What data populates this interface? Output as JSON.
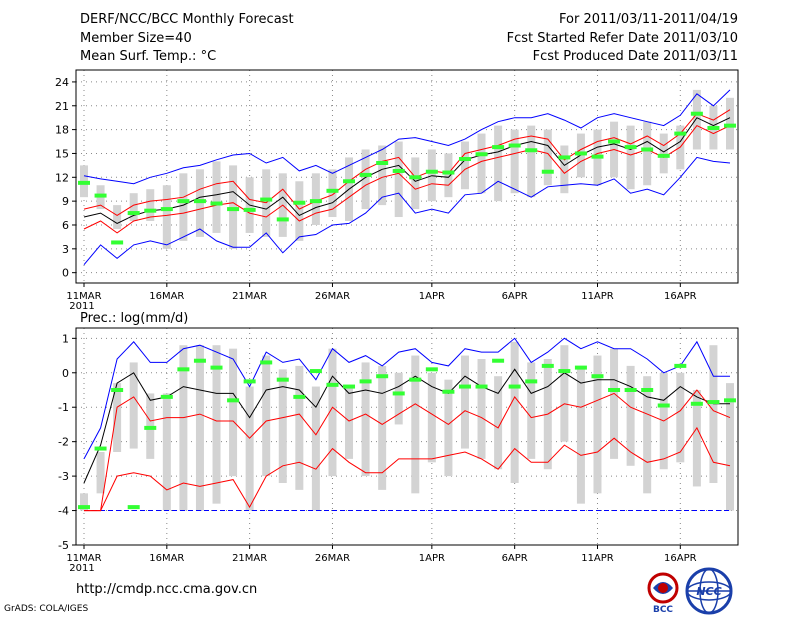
{
  "header": {
    "title": "DERF/NCC/BCC Monthly Forecast",
    "member_size": "Member Size=40",
    "variable": "Mean Surf. Temp.: °C",
    "period": "For 2011/03/11-2011/04/19",
    "fcst_started": "Fcst Started Refer Date 2011/03/10",
    "fcst_produced": "Fcst Produced Date 2011/03/11"
  },
  "footer": {
    "url": "http://cmdp.ncc.cma.gov.cn",
    "credit": "GrADS: COLA/IGES",
    "logo_bcc_label": "BCC",
    "logo_ncc_label": "NCC"
  },
  "colors": {
    "spread": "#0000ff",
    "band": "#ff0000",
    "mean": "#000000",
    "obs": "#33ff33",
    "box": "#d3d3d3",
    "grid": "#888888"
  },
  "chart_data": [
    {
      "type": "line",
      "title": "Mean Surf. Temp.: °C",
      "xlabel": "",
      "ylabel": "°C",
      "x_tick_labels": [
        "11MAR",
        "16MAR",
        "21MAR",
        "26MAR",
        "1APR",
        "6APR",
        "11APR",
        "16APR"
      ],
      "x_tick_days": [
        0,
        5,
        10,
        15,
        21,
        26,
        31,
        36
      ],
      "year_label": "2011",
      "y_ticks": [
        0,
        3,
        6,
        9,
        12,
        15,
        18,
        21,
        24
      ],
      "ylim": [
        -1.3,
        25.5
      ],
      "days": 40,
      "series": [
        {
          "name": "max",
          "color": "#0000ff",
          "values": [
            12.2,
            11.8,
            11.5,
            11.2,
            12.0,
            12.5,
            13.2,
            13.5,
            14.2,
            14.8,
            15.0,
            13.8,
            14.5,
            12.8,
            13.5,
            12.5,
            13.5,
            14.5,
            15.5,
            16.8,
            17.0,
            16.5,
            16.0,
            16.8,
            18.0,
            19.0,
            19.5,
            19.5,
            20.0,
            19.2,
            18.2,
            19.5,
            20.0,
            19.5,
            19.0,
            18.5,
            19.8,
            22.5,
            21.0,
            23.0
          ]
        },
        {
          "name": "upper",
          "color": "#ff0000",
          "values": [
            8.0,
            8.5,
            7.2,
            8.5,
            9.0,
            9.2,
            9.5,
            10.5,
            11.2,
            11.5,
            9.2,
            8.8,
            10.5,
            8.0,
            9.0,
            9.8,
            11.5,
            13.0,
            14.0,
            14.5,
            12.0,
            12.8,
            12.5,
            15.0,
            15.5,
            16.0,
            16.8,
            17.2,
            16.8,
            14.2,
            15.5,
            16.5,
            17.0,
            16.2,
            17.2,
            16.0,
            17.5,
            20.0,
            19.2,
            20.5
          ]
        },
        {
          "name": "mean",
          "color": "#000000",
          "values": [
            7.0,
            7.5,
            6.2,
            7.2,
            7.8,
            8.0,
            8.5,
            9.5,
            9.8,
            10.2,
            8.5,
            8.0,
            9.5,
            7.2,
            8.2,
            8.8,
            10.5,
            12.0,
            13.0,
            13.5,
            11.5,
            12.2,
            12.0,
            14.2,
            14.8,
            15.2,
            16.0,
            16.5,
            16.0,
            13.5,
            14.8,
            15.8,
            16.2,
            15.5,
            16.5,
            15.2,
            16.5,
            19.5,
            18.5,
            19.5
          ]
        },
        {
          "name": "lower",
          "color": "#ff0000",
          "values": [
            5.5,
            6.5,
            5.0,
            6.5,
            7.0,
            7.2,
            7.5,
            8.0,
            8.5,
            8.8,
            7.5,
            7.0,
            8.5,
            6.5,
            7.5,
            8.0,
            9.5,
            11.0,
            12.0,
            12.5,
            10.5,
            11.2,
            11.0,
            13.0,
            14.0,
            14.5,
            15.0,
            15.5,
            15.0,
            12.5,
            14.0,
            15.0,
            15.5,
            14.8,
            15.5,
            14.5,
            15.8,
            18.5,
            17.5,
            18.5
          ]
        },
        {
          "name": "min",
          "color": "#0000ff",
          "values": [
            1.0,
            3.5,
            1.8,
            3.5,
            4.0,
            3.5,
            4.5,
            5.5,
            4.0,
            3.2,
            3.2,
            5.0,
            2.5,
            4.5,
            4.8,
            6.0,
            6.2,
            7.5,
            9.5,
            10.0,
            7.5,
            8.0,
            7.5,
            9.8,
            10.0,
            11.5,
            10.5,
            9.5,
            10.8,
            11.0,
            11.2,
            11.0,
            11.8,
            10.0,
            10.5,
            9.8,
            12.0,
            14.5,
            14.0,
            13.8
          ]
        }
      ],
      "boxes": [
        [
          9.5,
          13.5
        ],
        [
          8.0,
          11.0
        ],
        [
          5.5,
          8.5
        ],
        [
          6.5,
          10.0
        ],
        [
          6.5,
          10.5
        ],
        [
          3.0,
          11.0
        ],
        [
          4.0,
          12.5
        ],
        [
          4.5,
          13.0
        ],
        [
          5.0,
          14.0
        ],
        [
          3.0,
          13.5
        ],
        [
          5.0,
          12.0
        ],
        [
          4.5,
          13.0
        ],
        [
          4.5,
          12.5
        ],
        [
          4.0,
          11.5
        ],
        [
          6.0,
          12.5
        ],
        [
          7.0,
          13.0
        ],
        [
          6.5,
          14.5
        ],
        [
          8.0,
          15.5
        ],
        [
          8.5,
          16.0
        ],
        [
          7.0,
          16.5
        ],
        [
          8.0,
          14.5
        ],
        [
          9.0,
          15.5
        ],
        [
          9.5,
          15.0
        ],
        [
          10.5,
          16.5
        ],
        [
          10.0,
          17.5
        ],
        [
          9.0,
          18.5
        ],
        [
          10.0,
          18.0
        ],
        [
          9.5,
          18.5
        ],
        [
          11.0,
          18.0
        ],
        [
          10.0,
          16.0
        ],
        [
          12.0,
          17.5
        ],
        [
          11.0,
          18.0
        ],
        [
          12.0,
          19.0
        ],
        [
          10.5,
          18.5
        ],
        [
          11.0,
          19.0
        ],
        [
          12.5,
          17.5
        ],
        [
          13.0,
          18.5
        ],
        [
          15.5,
          23.0
        ],
        [
          15.5,
          21.0
        ],
        [
          15.5,
          22.0
        ]
      ],
      "obs": [
        11.3,
        9.7,
        3.8,
        7.5,
        7.8,
        8.0,
        9.0,
        9.0,
        8.7,
        8.0,
        7.9,
        9.2,
        6.7,
        8.8,
        9.0,
        10.3,
        11.5,
        12.3,
        13.8,
        12.8,
        12.0,
        12.7,
        12.6,
        14.3,
        14.9,
        15.8,
        16.0,
        15.4,
        12.7,
        14.5,
        15.0,
        14.6,
        16.5,
        15.8,
        15.5,
        14.7,
        17.5,
        20.0,
        18.2,
        18.5
      ]
    },
    {
      "type": "line",
      "title": "Prec.: log(mm/d)",
      "xlabel": "",
      "ylabel": "log(mm/d)",
      "x_tick_labels": [
        "11MAR",
        "16MAR",
        "21MAR",
        "26MAR",
        "1APR",
        "6APR",
        "11APR",
        "16APR"
      ],
      "x_tick_days": [
        0,
        5,
        10,
        15,
        21,
        26,
        31,
        36
      ],
      "year_label": "2011",
      "y_ticks": [
        -5,
        -4,
        -3,
        -2,
        -1,
        0,
        1
      ],
      "ylim": [
        -5,
        1.3
      ],
      "days": 40,
      "baseline": -4,
      "series": [
        {
          "name": "max",
          "color": "#0000ff",
          "values": [
            -2.5,
            -1.6,
            0.4,
            0.9,
            0.3,
            0.3,
            0.7,
            0.8,
            0.6,
            0.4,
            -0.4,
            0.6,
            0.3,
            0.4,
            -0.2,
            0.7,
            0.3,
            0.5,
            0.2,
            0.6,
            0.7,
            0.3,
            0.2,
            0.7,
            0.6,
            0.6,
            1.0,
            0.3,
            0.6,
            1.0,
            0.7,
            0.9,
            0.7,
            0.7,
            0.4,
            0.0,
            0.2,
            0.9,
            -0.1,
            -0.1
          ]
        },
        {
          "name": "mean",
          "color": "#000000",
          "values": [
            -3.2,
            -2.1,
            -0.3,
            0.0,
            -0.8,
            -0.7,
            -0.4,
            -0.5,
            -0.6,
            -0.6,
            -1.3,
            -0.5,
            -0.4,
            -0.5,
            -1.0,
            -0.1,
            -0.6,
            -0.5,
            -0.6,
            -0.4,
            -0.1,
            -0.4,
            -0.6,
            -0.1,
            -0.4,
            -0.6,
            0.1,
            -0.6,
            -0.4,
            0.0,
            -0.3,
            -0.2,
            -0.2,
            -0.4,
            -0.7,
            -0.8,
            -0.4,
            -0.7,
            -0.9,
            -0.9
          ]
        },
        {
          "name": "upper",
          "color": "#ff0000",
          "values": [
            -4.0,
            -4.0,
            -1.0,
            -0.7,
            -1.4,
            -1.3,
            -1.3,
            -1.2,
            -1.4,
            -1.4,
            -1.9,
            -1.4,
            -1.3,
            -1.2,
            -1.8,
            -1.0,
            -1.4,
            -1.2,
            -1.5,
            -1.2,
            -0.9,
            -1.2,
            -1.5,
            -1.1,
            -1.3,
            -1.6,
            -0.7,
            -1.3,
            -1.2,
            -0.9,
            -1.0,
            -0.8,
            -0.6,
            -1.0,
            -1.2,
            -1.4,
            -1.1,
            -0.5,
            -1.1,
            -1.3
          ]
        },
        {
          "name": "lower",
          "color": "#ff0000",
          "values": [
            -4.0,
            -4.0,
            -3.0,
            -2.9,
            -3.0,
            -3.4,
            -3.2,
            -3.3,
            -3.2,
            -3.1,
            -3.9,
            -3.0,
            -2.7,
            -2.6,
            -2.8,
            -2.2,
            -2.6,
            -2.9,
            -2.9,
            -2.5,
            -2.5,
            -2.5,
            -2.4,
            -2.3,
            -2.5,
            -2.8,
            -2.2,
            -2.6,
            -2.6,
            -2.1,
            -2.4,
            -2.3,
            -1.9,
            -2.3,
            -2.6,
            -2.5,
            -2.3,
            -1.6,
            -2.6,
            -2.7
          ]
        }
      ],
      "boxes": [
        [
          -4.0,
          -3.5
        ],
        [
          -3.5,
          -2.3
        ],
        [
          -2.3,
          -0.3
        ],
        [
          -2.2,
          0.3
        ],
        [
          -2.5,
          -0.6
        ],
        [
          -4.0,
          -0.6
        ],
        [
          -4.0,
          0.8
        ],
        [
          -4.0,
          0.8
        ],
        [
          -3.8,
          0.8
        ],
        [
          -3.0,
          0.7
        ],
        [
          -4.0,
          -0.4
        ],
        [
          -3.0,
          0.5
        ],
        [
          -3.2,
          0.1
        ],
        [
          -3.4,
          0.2
        ],
        [
          -4.0,
          -0.4
        ],
        [
          -3.0,
          0.7
        ],
        [
          -2.5,
          -0.4
        ],
        [
          -3.0,
          0.3
        ],
        [
          -3.4,
          0.2
        ],
        [
          -1.5,
          0.0
        ],
        [
          -3.5,
          0.5
        ],
        [
          -2.6,
          0.0
        ],
        [
          -3.0,
          -0.2
        ],
        [
          -2.2,
          0.5
        ],
        [
          -2.5,
          0.4
        ],
        [
          -2.8,
          -0.1
        ],
        [
          -3.2,
          0.9
        ],
        [
          -2.5,
          0.3
        ],
        [
          -2.8,
          0.4
        ],
        [
          -2.0,
          0.8
        ],
        [
          -3.8,
          0.2
        ],
        [
          -3.5,
          0.5
        ],
        [
          -2.5,
          0.7
        ],
        [
          -2.7,
          0.2
        ],
        [
          -3.5,
          -0.1
        ],
        [
          -2.8,
          0.0
        ],
        [
          -2.6,
          0.0
        ],
        [
          -3.3,
          -0.5
        ],
        [
          -3.2,
          0.8
        ],
        [
          -4.0,
          -0.3
        ]
      ],
      "obs": [
        -3.9,
        -2.2,
        -0.5,
        -3.9,
        -1.6,
        -0.7,
        0.1,
        0.35,
        0.15,
        -0.8,
        -0.25,
        0.3,
        -0.2,
        -0.7,
        0.05,
        -0.35,
        -0.4,
        -0.25,
        -0.1,
        -0.6,
        -0.2,
        0.1,
        -0.55,
        -0.4,
        -0.4,
        0.35,
        -0.4,
        -0.25,
        0.2,
        0.05,
        0.15,
        -0.1,
        -0.5,
        -0.5,
        -0.5,
        -0.95,
        0.2,
        -0.9,
        -0.85,
        -0.8
      ]
    }
  ]
}
